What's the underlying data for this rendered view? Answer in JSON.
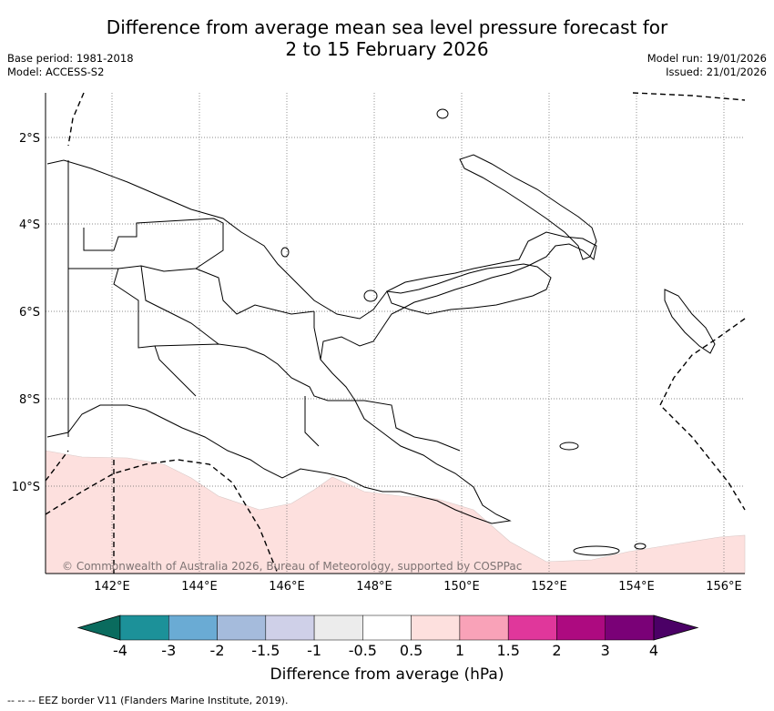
{
  "title": {
    "line1": "Difference from average mean sea level pressure forecast for",
    "line2": "2 to 15 February 2026"
  },
  "meta": {
    "base_period": "Base period: 1981-2018",
    "model": "Model: ACCESS-S2",
    "model_run": "Model run: 19/01/2026",
    "issued": "Issued: 21/01/2026"
  },
  "map": {
    "lat_labels": [
      "2°S",
      "4°S",
      "6°S",
      "8°S",
      "10°S"
    ],
    "lon_labels": [
      "142°E",
      "144°E",
      "146°E",
      "148°E",
      "150°E",
      "152°E",
      "154°E",
      "156°E"
    ],
    "copyright": "© Commonwealth of Australia 2026, Bureau of Meteorology, supported by COSPPac",
    "anomaly_fill_color": "#fde0de"
  },
  "colorbar": {
    "label": "Difference from average (hPa)",
    "ticks": [
      "-4",
      "-3",
      "-2",
      "-1.5",
      "-1",
      "-0.5",
      "0.5",
      "1",
      "1.5",
      "2",
      "3",
      "4"
    ],
    "colors": [
      "#0a6b5e",
      "#1c9199",
      "#6aabd4",
      "#a5bbdc",
      "#cfd0e8",
      "#ececec",
      "#ffffff",
      "#fde0de",
      "#f9a2b8",
      "#e0379b",
      "#ad0a80",
      "#7a0177",
      "#4b0066"
    ]
  },
  "footnote": "--  --  -- EEZ border V11 (Flanders Marine Institute, 2019)."
}
